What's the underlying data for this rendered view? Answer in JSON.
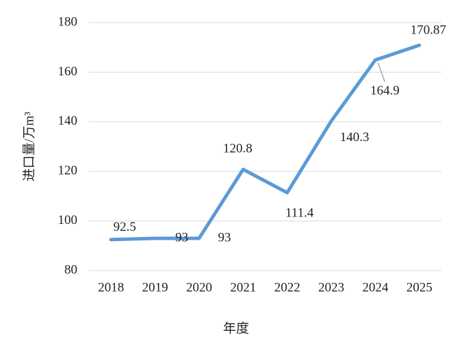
{
  "chart_data": {
    "type": "line",
    "x_label": "年度",
    "y_label": "进口量/万m³",
    "categories": [
      "2018",
      "2019",
      "2020",
      "2021",
      "2022",
      "2023",
      "2024",
      "2025"
    ],
    "values": [
      92.5,
      93,
      93,
      120.8,
      111.4,
      140.3,
      164.9,
      170.87
    ],
    "color": "#5b9bd5",
    "ylim": [
      80,
      180
    ],
    "yticks": [
      80,
      100,
      120,
      140,
      160,
      180
    ],
    "grid": true
  }
}
